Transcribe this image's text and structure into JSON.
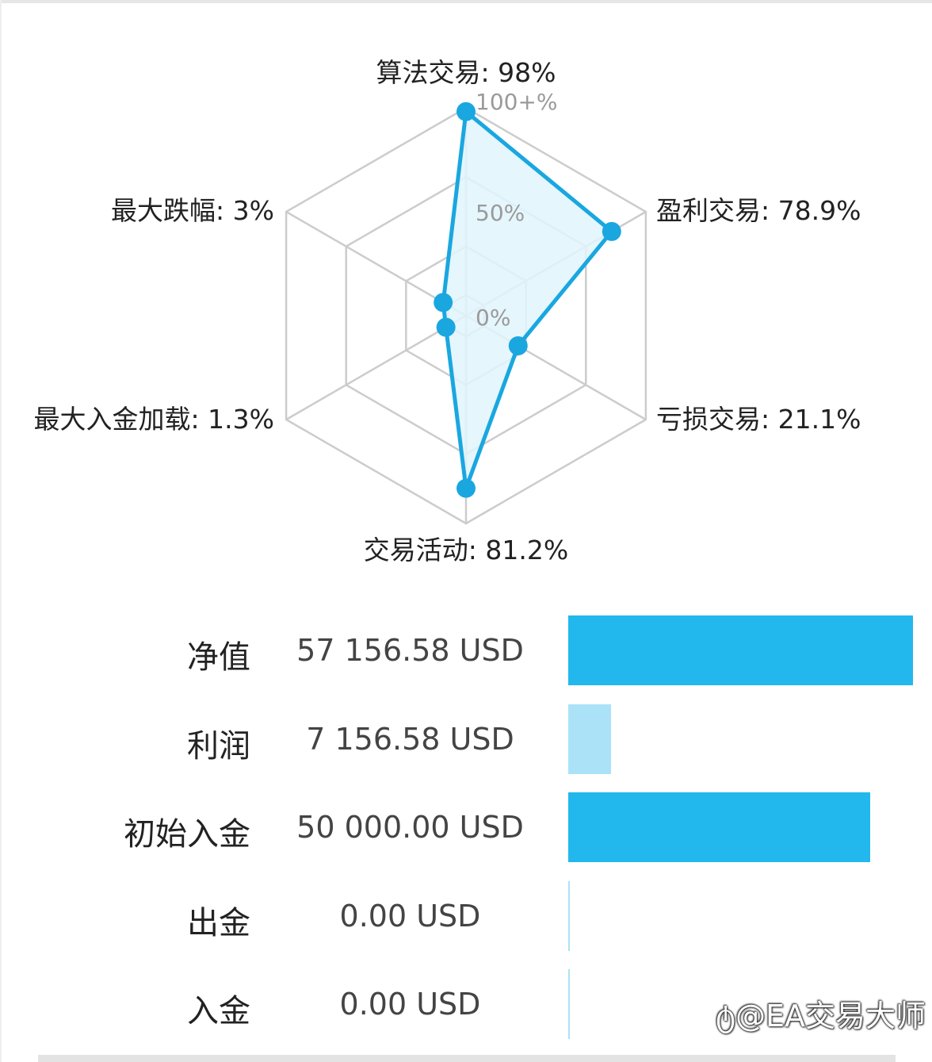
{
  "chart_data": [
    {
      "type": "radar",
      "axes": [
        {
          "label": "算法交易: 98%",
          "value": 98
        },
        {
          "label": "盈利交易: 78.9%",
          "value": 78.9
        },
        {
          "label": "亏损交易: 21.1%",
          "value": 21.1
        },
        {
          "label": "交易活动: 81.2%",
          "value": 81.2
        },
        {
          "label": "最大入金加载: 1.3%",
          "value": 1.3
        },
        {
          "label": "最大跌幅: 3%",
          "value": 3
        }
      ],
      "ring_labels": [
        "100+%",
        "50%",
        "0%"
      ],
      "range": [
        0,
        100
      ],
      "colors": {
        "line": "#1aa7e0",
        "fill": "#e0f4fc",
        "grid": "#cccccc"
      }
    },
    {
      "type": "bar",
      "orientation": "horizontal",
      "rows": [
        {
          "label": "净值",
          "value_text": "57 156.58 USD",
          "value": 57156.58,
          "color": "#22b8ee"
        },
        {
          "label": "利润",
          "value_text": "7 156.58 USD",
          "value": 7156.58,
          "color": "#abe2f8"
        },
        {
          "label": "初始入金",
          "value_text": "50 000.00 USD",
          "value": 50000.0,
          "color": "#22b8ee"
        },
        {
          "label": "出金",
          "value_text": "0.00 USD",
          "value": 0,
          "color": "#abe2f8"
        },
        {
          "label": "入金",
          "value_text": "0.00 USD",
          "value": 0,
          "color": "#abe2f8"
        }
      ],
      "max": 57156.58
    }
  ],
  "watermark": "@EA交易大师"
}
